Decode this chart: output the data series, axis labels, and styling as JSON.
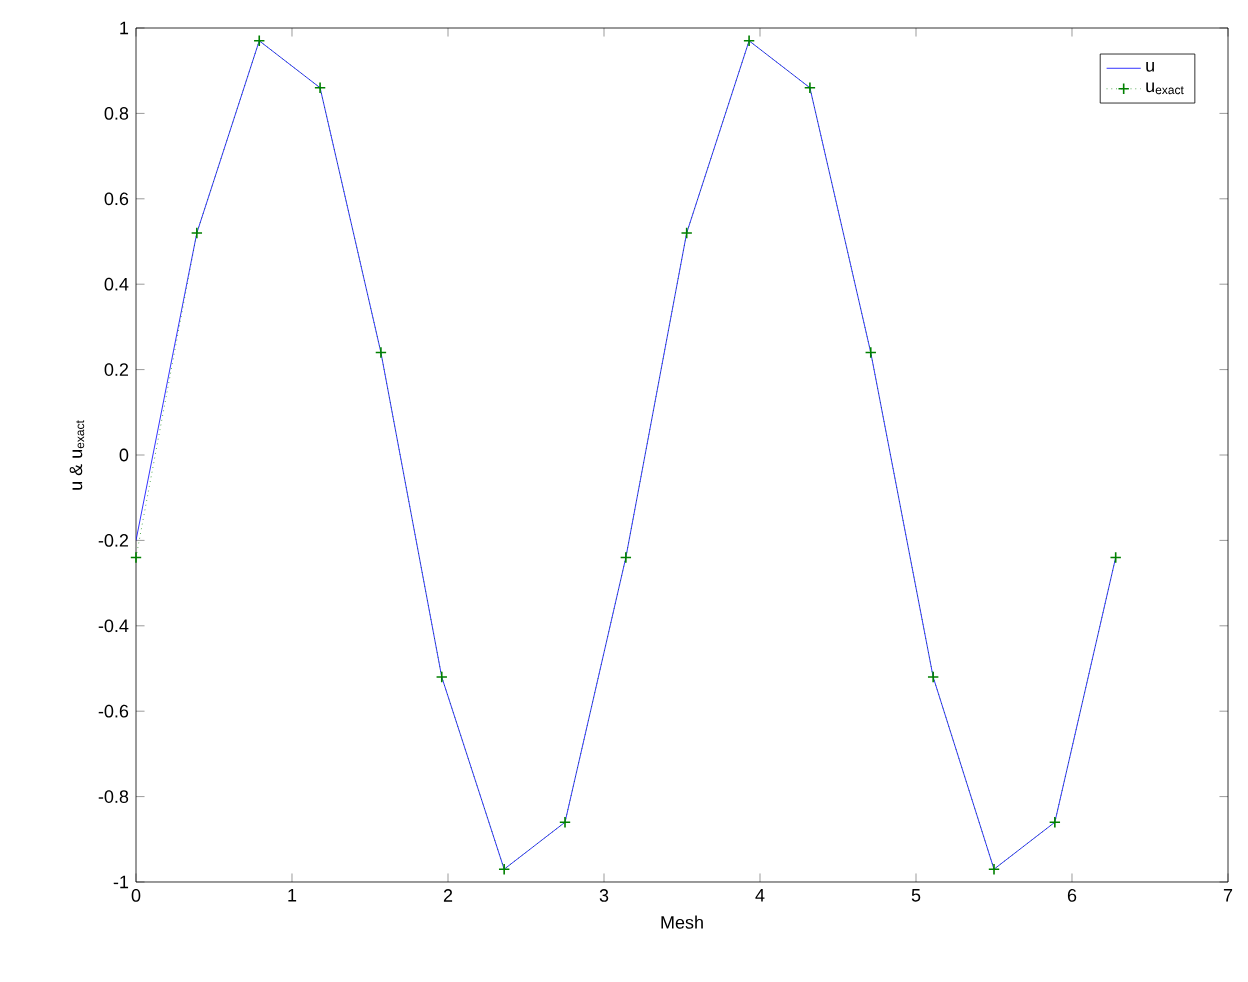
{
  "chart_data": {
    "type": "line",
    "xlabel": "Mesh",
    "ylabel": "u & u$_{exact}$",
    "xlim": [
      0,
      7
    ],
    "ylim": [
      -1,
      1
    ],
    "xticks": [
      0,
      1,
      2,
      3,
      4,
      5,
      6,
      7
    ],
    "yticks": [
      -1,
      -0.8,
      -0.6,
      -0.4,
      -0.2,
      0,
      0.2,
      0.4,
      0.6,
      0.8,
      1
    ],
    "grid": false,
    "legend": "top right",
    "x": [
      0,
      0.39,
      0.79,
      1.18,
      1.57,
      1.96,
      2.36,
      2.75,
      3.14,
      3.53,
      3.93,
      4.32,
      4.71,
      5.11,
      5.5,
      5.89,
      6.28
    ],
    "series": [
      {
        "name": "u",
        "color": "#0000ff",
        "line_style": "solid",
        "marker": "none",
        "values": [
          -0.2,
          0.52,
          0.97,
          0.86,
          0.24,
          -0.52,
          -0.97,
          -0.86,
          -0.24,
          0.52,
          0.97,
          0.86,
          0.24,
          -0.52,
          -0.97,
          -0.86,
          -0.24
        ]
      },
      {
        "name": "u$_{exact}$",
        "color": "#008000",
        "line_style": "dotted",
        "marker": "cross",
        "values": [
          -0.24,
          0.52,
          0.97,
          0.86,
          0.24,
          -0.52,
          -0.97,
          -0.86,
          -0.24,
          0.52,
          0.97,
          0.86,
          0.24,
          -0.52,
          -0.97,
          -0.86,
          -0.24
        ]
      }
    ]
  }
}
